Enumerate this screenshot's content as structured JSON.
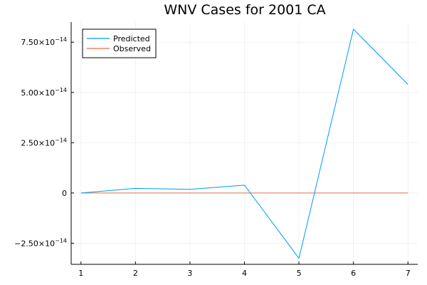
{
  "chart_data": {
    "type": "line",
    "title": "WNV Cases for 2001 CA",
    "xlabel": "",
    "ylabel": "",
    "x": [
      1,
      2,
      3,
      4,
      5,
      6,
      7
    ],
    "xlim": [
      0.82,
      7.18
    ],
    "ylim": [
      -3.55e-14,
      8.5e-14
    ],
    "xticks": [
      1,
      2,
      3,
      4,
      5,
      6,
      7
    ],
    "yticks": [
      {
        "value": -2.5e-14,
        "mantissa": "−2.50×10",
        "exp": "−14"
      },
      {
        "value": 0,
        "mantissa": "0",
        "exp": ""
      },
      {
        "value": 2.5e-14,
        "mantissa": "2.50×10",
        "exp": "−14"
      },
      {
        "value": 5e-14,
        "mantissa": "5.00×10",
        "exp": "−14"
      },
      {
        "value": 7.5e-14,
        "mantissa": "7.50×10",
        "exp": "−14"
      }
    ],
    "grid": true,
    "legend_position": "top-left",
    "series": [
      {
        "name": "Predicted",
        "color": "#009AFA",
        "values": [
          0,
          2.3e-15,
          1.8e-15,
          3.9e-15,
          -3.25e-14,
          8.15e-14,
          5.4e-14
        ]
      },
      {
        "name": "Observed",
        "color": "#E26F46",
        "values": [
          0,
          0,
          0,
          0,
          0,
          0,
          0
        ]
      }
    ]
  }
}
